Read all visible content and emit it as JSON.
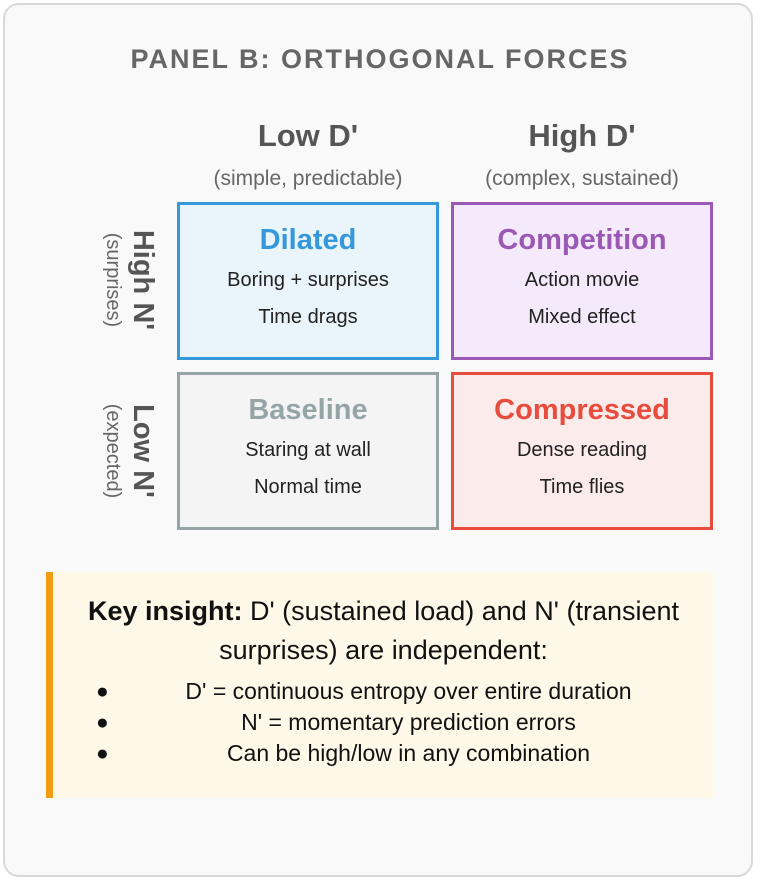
{
  "panel": {
    "title": "PANEL B: ORTHOGONAL FORCES"
  },
  "columns": [
    {
      "label": "Low D'",
      "sub": "(simple, predictable)"
    },
    {
      "label": "High D'",
      "sub": "(complex, sustained)"
    }
  ],
  "rows": [
    {
      "label": "High N'",
      "sub": "(surprises)"
    },
    {
      "label": "Low N'",
      "sub": "(expected)"
    }
  ],
  "cells": {
    "dilated": {
      "title": "Dilated",
      "line1": "Boring + surprises",
      "line2": "Time drags",
      "color": "#3498db",
      "bg": "#eaf4fb"
    },
    "competition": {
      "title": "Competition",
      "line1": "Action movie",
      "line2": "Mixed effect",
      "color": "#9b59b6",
      "bg": "#f5eafb"
    },
    "baseline": {
      "title": "Baseline",
      "line1": "Staring at wall",
      "line2": "Normal time",
      "color": "#95a5a6",
      "bg": "#f4f4f4"
    },
    "compressed": {
      "title": "Compressed",
      "line1": "Dense reading",
      "line2": "Time flies",
      "color": "#e74c3c",
      "bg": "#fbeceb"
    }
  },
  "insight": {
    "key_label": "Key insight:",
    "key_text": " D' (sustained load) and N' (transient surprises) are independent:",
    "bullets": [
      "D' = continuous entropy over entire duration",
      "N' = momentary prediction errors",
      "Can be high/low in any combination"
    ],
    "accent": "#f39c12"
  }
}
